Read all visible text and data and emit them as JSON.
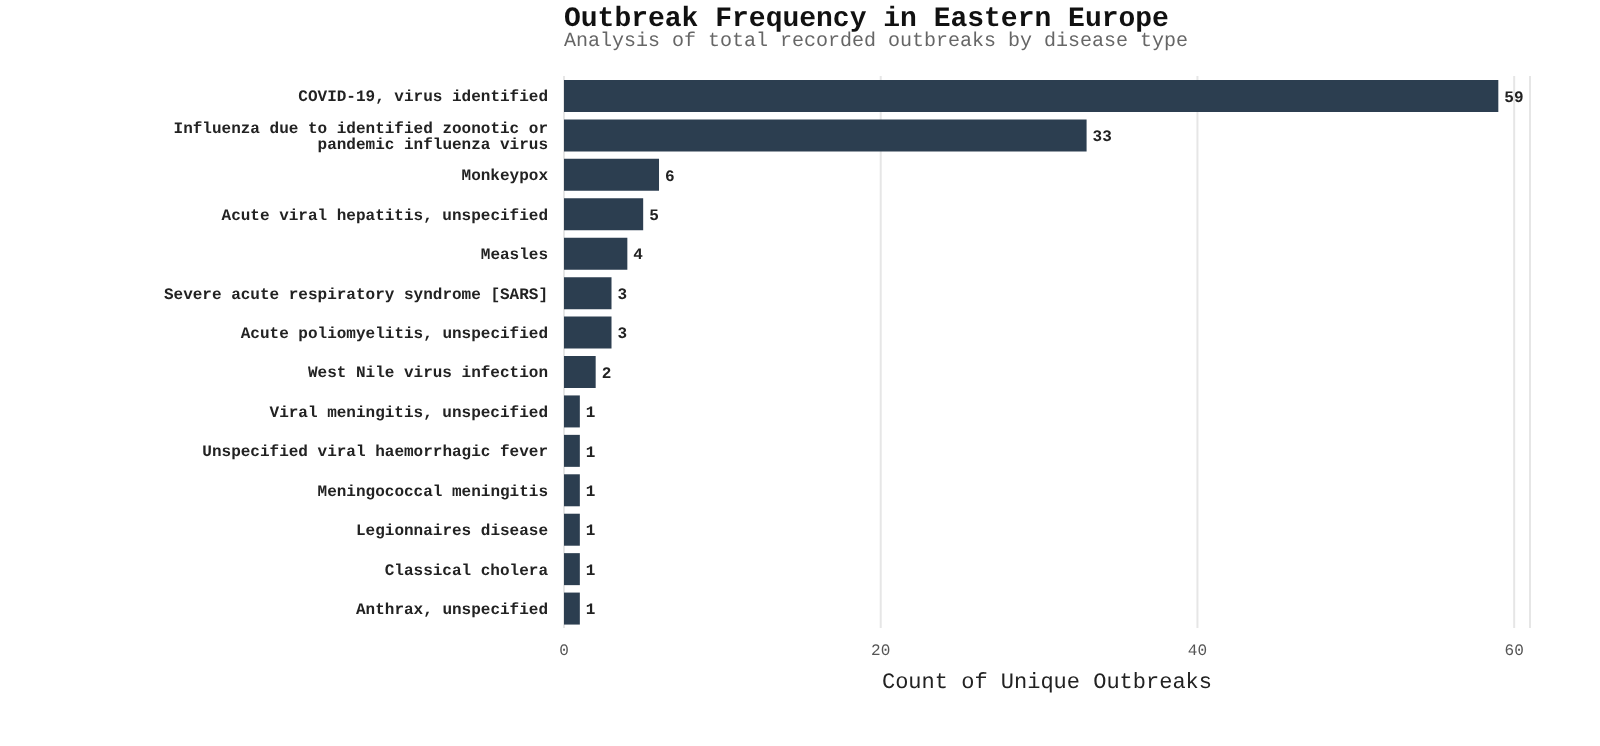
{
  "chart_data": {
    "type": "bar",
    "orientation": "horizontal",
    "title": "Outbreak Frequency in Eastern Europe",
    "subtitle": "Analysis of total recorded outbreaks by disease type",
    "xlabel": "Count of Unique Outbreaks",
    "categories": [
      "COVID-19, virus identified",
      "Influenza due to identified zoonotic or pandemic influenza virus",
      "Monkeypox",
      "Acute viral hepatitis, unspecified",
      "Measles",
      "Severe acute respiratory syndrome [SARS]",
      "Acute poliomyelitis, unspecified",
      "West Nile virus infection",
      "Viral meningitis, unspecified",
      "Unspecified viral haemorrhagic fever",
      "Meningococcal meningitis",
      "Legionnaires disease",
      "Classical cholera",
      "Anthrax, unspecified"
    ],
    "values": [
      59,
      33,
      6,
      5,
      4,
      3,
      3,
      2,
      1,
      1,
      1,
      1,
      1,
      1
    ],
    "color": "#2c3e50",
    "xlim": [
      0,
      61
    ],
    "xticks": [
      0,
      20,
      40,
      60
    ],
    "grid": "x",
    "data_labels": true,
    "legend": false
  }
}
